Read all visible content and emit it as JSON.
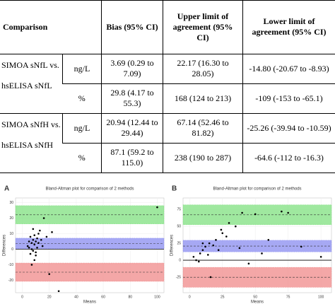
{
  "table": {
    "header": [
      "Comparison",
      "Bias (95% CI)",
      "Upper limit of agreement (95% CI)",
      "Lower limit of agreement (95% CI)"
    ],
    "rows": [
      {
        "comparison": [
          "SIMOA sNfL vs.",
          "hsELISA sNfL"
        ],
        "lines": [
          [
            "ng/L",
            "3.69 (0.29 to 7.09)",
            "22.17 (16.30 to 28.05)",
            "-14.80 (-20.67 to -8.93)"
          ],
          [
            "%",
            "29.8 (4.17 to 55.3)",
            "168 (124 to 213)",
            "-109 (-153 to -65.1)"
          ]
        ]
      },
      {
        "comparison": [
          "SIMOA sNfH vs.",
          "hsELISA sNfH"
        ],
        "lines": [
          [
            "ng/L",
            "20.94 (12.44 to 29.44)",
            "67.14 (52.46 to 81.82)",
            "-25.26 (-39.94 to -10.59)"
          ],
          [
            "%",
            "87.1 (59.2 to 115.0)",
            "238 (190 to 287)",
            "-64.6 (-112 to -16.3)"
          ]
        ]
      }
    ]
  },
  "chart_data": [
    {
      "type": "scatter",
      "label": "A",
      "title": "Bland-Altman plot for comparison of 2 methods",
      "xlabel": "Means",
      "ylabel": "Differences",
      "x": [
        4,
        5,
        6,
        6,
        7,
        7,
        8,
        8,
        9,
        9,
        10,
        10,
        11,
        11,
        12,
        12,
        13,
        14,
        15,
        9,
        7,
        10,
        16,
        20,
        8,
        18,
        22,
        27,
        100,
        5
      ],
      "y": [
        2,
        5,
        -3,
        8,
        0,
        4,
        -1,
        6,
        3,
        9,
        -2,
        5,
        1,
        7,
        4,
        10,
        12,
        6,
        2,
        -7,
        -10,
        -4,
        20,
        -16,
        13,
        8,
        11,
        -27,
        27,
        1
      ],
      "color": "#000000",
      "xlim": [
        -5,
        105
      ],
      "ylim": [
        -28,
        33
      ],
      "xticks": [
        0,
        20,
        40,
        60,
        80,
        100
      ],
      "yticks": [
        -20,
        -10,
        0,
        10,
        20,
        30
      ],
      "bands": [
        {
          "color": "#7fe07f",
          "low": 16.3,
          "mid": 22.17,
          "high": 28.05
        },
        {
          "color": "#8a8cf0",
          "low": 0.29,
          "mid": 3.69,
          "high": 7.09
        },
        {
          "color": "#f08a8a",
          "low": -20.67,
          "mid": -14.8,
          "high": -8.93
        }
      ]
    },
    {
      "type": "scatter",
      "label": "B",
      "title": "Bland-Altman plot for comparison of 2 methods",
      "xlabel": "Means",
      "ylabel": "Differences",
      "x": [
        3,
        5,
        7,
        8,
        10,
        12,
        14,
        15,
        16,
        18,
        20,
        22,
        25,
        28,
        30,
        35,
        38,
        40,
        45,
        50,
        55,
        60,
        70,
        75,
        85,
        100,
        10,
        24
      ],
      "y": [
        5,
        0,
        -2,
        10,
        15,
        20,
        8,
        25,
        -25,
        22,
        30,
        15,
        40,
        35,
        55,
        50,
        18,
        70,
        -5,
        68,
        10,
        30,
        72,
        70,
        20,
        5,
        25,
        45
      ],
      "color": "#000000",
      "xlim": [
        -5,
        108
      ],
      "ylim": [
        -48,
        92
      ],
      "xticks": [
        0,
        25,
        50,
        75,
        100
      ],
      "yticks": [
        -25,
        0,
        25,
        50,
        75
      ],
      "bands": [
        {
          "color": "#7fe07f",
          "low": 52.46,
          "mid": 67.14,
          "high": 81.82
        },
        {
          "color": "#8a8cf0",
          "low": 12.44,
          "mid": 20.94,
          "high": 29.44
        },
        {
          "color": "#f08a8a",
          "low": -39.94,
          "mid": -25.26,
          "high": -10.59
        }
      ]
    }
  ]
}
